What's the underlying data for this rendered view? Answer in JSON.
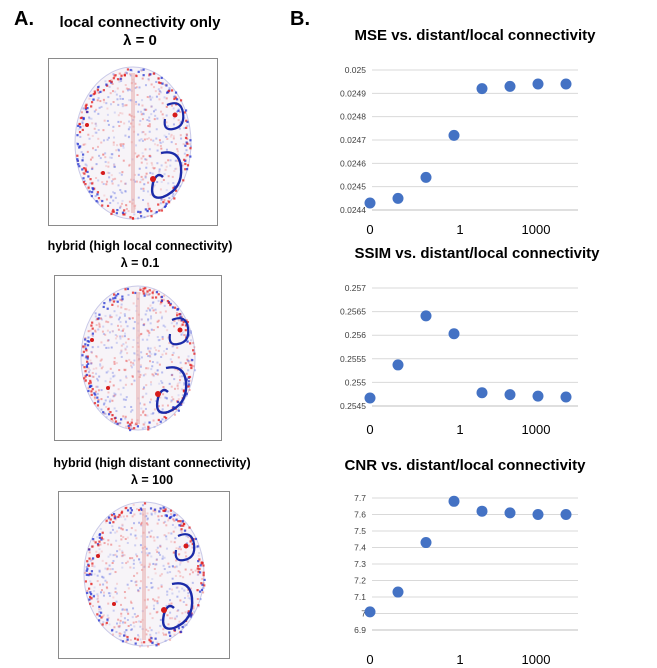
{
  "panel_a": {
    "letter": "A.",
    "maps": [
      {
        "title": "local connectivity only",
        "subtitle": "λ = 0"
      },
      {
        "title": "hybrid (high local connectivity)",
        "subtitle": "λ = 0.1"
      },
      {
        "title": "hybrid (high distant connectivity)",
        "subtitle": "λ = 100"
      }
    ]
  },
  "panel_b": {
    "letter": "B."
  },
  "chart_data": [
    {
      "type": "scatter",
      "title": "MSE vs. distant/local connectivity",
      "xlabel": "",
      "ylabel": "",
      "x_tick_labels": [
        "0",
        "1",
        "1000"
      ],
      "y_tick_labels": [
        "0.0244",
        "0.0245",
        "0.0246",
        "0.0247",
        "0.0248",
        "0.0249",
        "0.025"
      ],
      "ylim": [
        0.0244,
        0.025
      ],
      "grid": "horizontal",
      "x": [
        0,
        0.5,
        1,
        1.5,
        2,
        2.5,
        3,
        3.5
      ],
      "values": [
        0.02443,
        0.02445,
        0.02454,
        0.02472,
        0.02492,
        0.02493,
        0.02494,
        0.02494
      ],
      "color": "#4472c4"
    },
    {
      "type": "scatter",
      "title": "SSIM vs. distant/local connectivity",
      "xlabel": "",
      "ylabel": "",
      "x_tick_labels": [
        "0",
        "1",
        "1000"
      ],
      "y_tick_labels": [
        "0.2545",
        "0.255",
        "0.2555",
        "0.256",
        "0.2565",
        "0.257"
      ],
      "ylim": [
        0.2545,
        0.257
      ],
      "grid": "horizontal",
      "x": [
        0,
        0.5,
        1,
        1.5,
        2,
        2.5,
        3,
        3.5
      ],
      "values": [
        0.25467,
        0.25537,
        0.25641,
        0.25603,
        0.25478,
        0.25474,
        0.25471,
        0.25469
      ],
      "color": "#4472c4"
    },
    {
      "type": "scatter",
      "title": "CNR vs. distant/local connectivity",
      "xlabel": "",
      "ylabel": "",
      "x_tick_labels": [
        "0",
        "1",
        "1000"
      ],
      "y_tick_labels": [
        "6.9",
        "7",
        "7.1",
        "7.2",
        "7.3",
        "7.4",
        "7.5",
        "7.6",
        "7.7"
      ],
      "ylim": [
        6.9,
        7.7
      ],
      "grid": "horizontal",
      "x": [
        0,
        0.5,
        1,
        1.5,
        2,
        2.5,
        3,
        3.5
      ],
      "values": [
        7.01,
        7.13,
        7.43,
        7.68,
        7.62,
        7.61,
        7.6,
        7.6
      ],
      "color": "#4472c4"
    }
  ]
}
